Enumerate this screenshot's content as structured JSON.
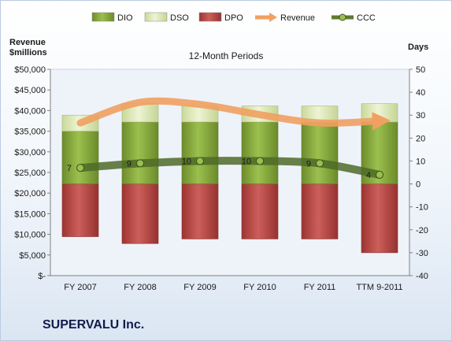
{
  "company": "SUPERVALU Inc.",
  "chart_data": {
    "type": "bar",
    "title": "12-Month Periods",
    "left_axis_label": [
      "Revenue",
      "$millions"
    ],
    "right_axis_label": "Days",
    "categories": [
      "FY 2007",
      "FY 2008",
      "FY 2009",
      "FY 2010",
      "FY 2011",
      "TTM 9-2011"
    ],
    "left_axis": {
      "min": 0,
      "max": 50000,
      "step": 5000,
      "tick_labels": [
        "$-",
        "$5,000",
        "$10,000",
        "$15,000",
        "$20,000",
        "$25,000",
        "$30,000",
        "$35,000",
        "$40,000",
        "$45,000",
        "$50,000"
      ]
    },
    "right_axis": {
      "min": -40,
      "max": 50,
      "step": 10,
      "tick_labels": [
        "-40",
        "-30",
        "-20",
        "-10",
        "0",
        "10",
        "20",
        "30",
        "40",
        "50"
      ]
    },
    "legend": {
      "position": "top",
      "items": [
        {
          "name": "DIO",
          "kind": "bar",
          "color": "#8db043"
        },
        {
          "name": "DSO",
          "kind": "bar",
          "color": "#dfeab7"
        },
        {
          "name": "DPO",
          "kind": "bar",
          "color": "#c0504d"
        },
        {
          "name": "Revenue",
          "kind": "arrow",
          "color": "#f2a061"
        },
        {
          "name": "CCC",
          "kind": "line",
          "color": "#5e7a32"
        }
      ]
    },
    "series": [
      {
        "name": "DIO",
        "axis": "Days",
        "values": [
          23,
          27,
          27,
          27,
          27,
          27
        ]
      },
      {
        "name": "DSO",
        "axis": "Days",
        "values": [
          7,
          8,
          7,
          7,
          7,
          8
        ]
      },
      {
        "name": "DPO",
        "axis": "Days",
        "values": [
          -23,
          -26,
          -24,
          -24,
          -24,
          -30
        ]
      },
      {
        "name": "Revenue",
        "axis": "Revenue",
        "values": [
          37000,
          42000,
          41500,
          39000,
          37000,
          37500
        ]
      },
      {
        "name": "CCC",
        "axis": "Days",
        "values": [
          7,
          9,
          10,
          10,
          9,
          4
        ],
        "labels": [
          "7",
          "9",
          "10",
          "10",
          "9",
          "4"
        ]
      }
    ],
    "grid": false
  }
}
